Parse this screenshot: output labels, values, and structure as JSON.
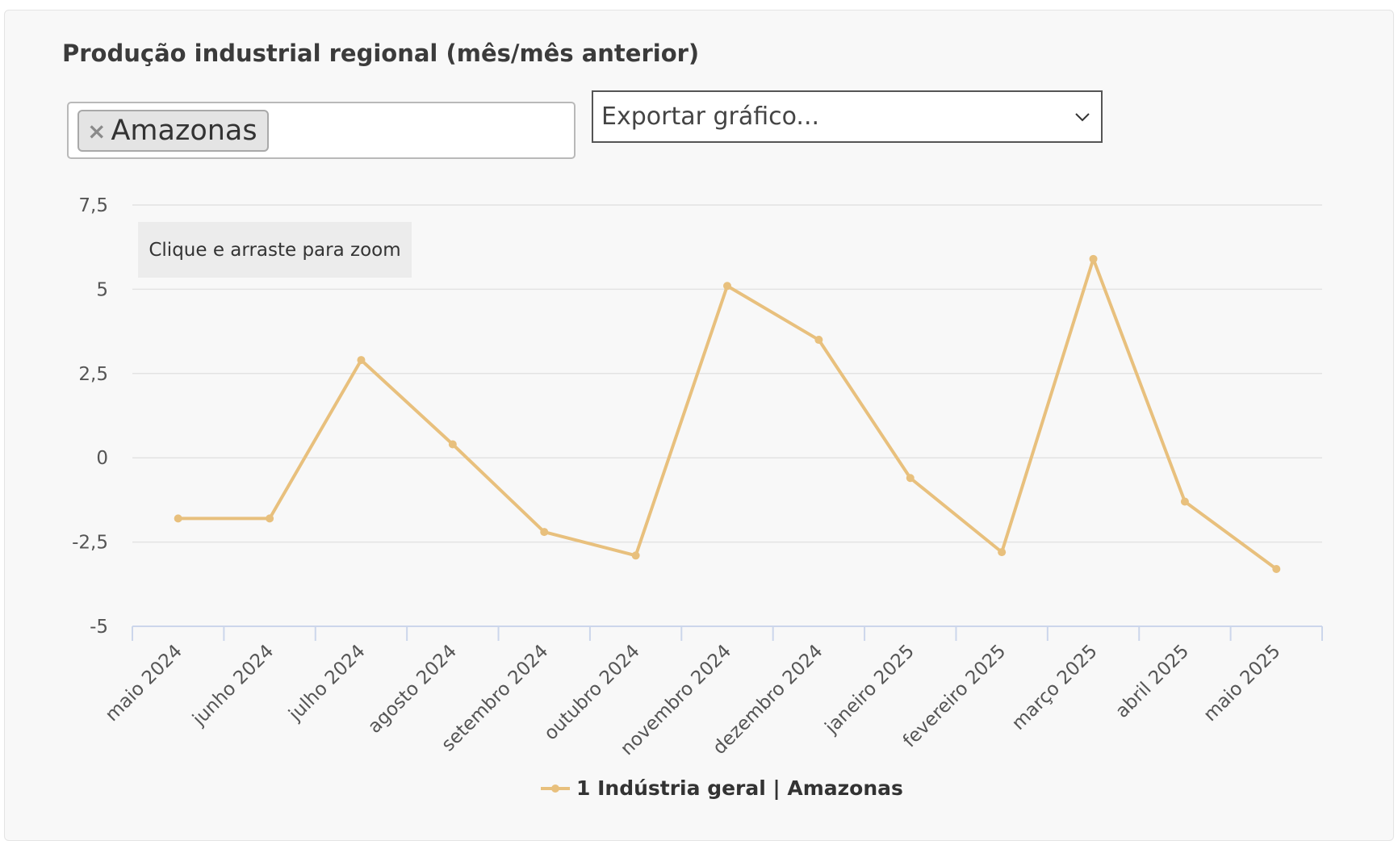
{
  "header": {
    "title": "Produção industrial regional (mês/mês anterior)"
  },
  "filter": {
    "selected_tag": "Amazonas",
    "remove_symbol": "×"
  },
  "export": {
    "label": "Exportar gráfico..."
  },
  "zoom_hint": "Clique e arraste para zoom",
  "colors": {
    "series": "#e8c07d",
    "grid": "#e3e3e3",
    "axis": "#ccd6eb",
    "text": "#555555"
  },
  "chart_data": {
    "type": "line",
    "categories": [
      "maio 2024",
      "junho 2024",
      "julho 2024",
      "agosto 2024",
      "setembro 2024",
      "outubro 2024",
      "novembro 2024",
      "dezembro 2024",
      "janeiro 2025",
      "fevereiro 2025",
      "março 2025",
      "abril 2025",
      "maio 2025"
    ],
    "series": [
      {
        "name": "1 Indústria geral | Amazonas",
        "values": [
          -1.8,
          -1.8,
          2.9,
          0.4,
          -2.2,
          -2.9,
          5.1,
          3.5,
          -0.6,
          -2.8,
          5.9,
          -1.3,
          -3.3
        ]
      }
    ],
    "ylim": [
      -5,
      7.5
    ],
    "yticks": [
      -5,
      -2.5,
      0,
      2.5,
      5,
      7.5
    ],
    "ytick_labels": [
      "-5",
      "-2,5",
      "0",
      "2,5",
      "5",
      "7,5"
    ],
    "grid": true,
    "legend": "bottom-center"
  }
}
